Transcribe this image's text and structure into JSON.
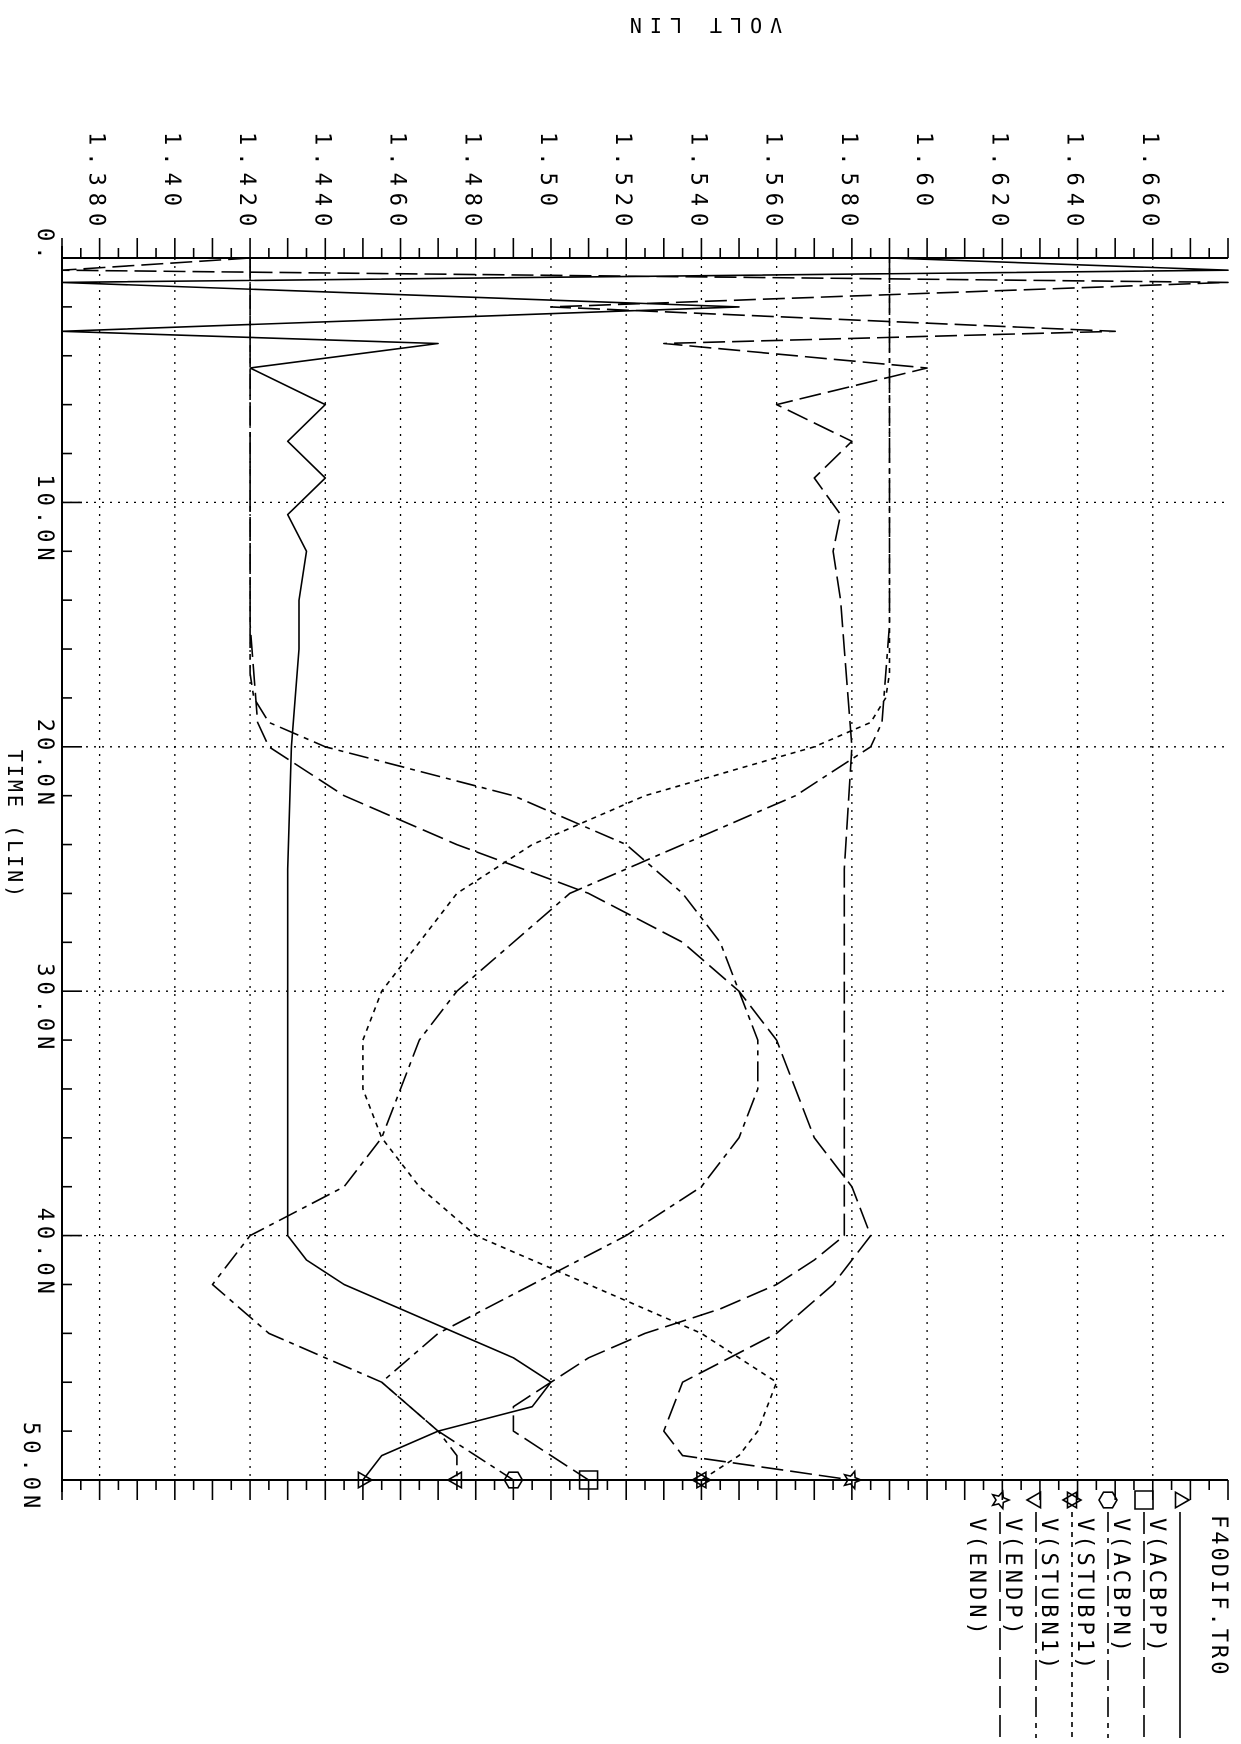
{
  "plot_title": "F40DIF.TR0",
  "y_axis_unit": "VOLT LIN",
  "x_axis_label": "TIME (LIN)",
  "x_tick_origin_label": "0.",
  "chart_data": {
    "type": "line",
    "orientation": "rotated-90-clockwise",
    "title": "F40DIF.TR0",
    "xlabel": "TIME (LIN)",
    "ylabel": "VOLT LIN",
    "x_unit": "ns",
    "xlim": [
      0,
      50
    ],
    "ylim": [
      1.37,
      1.68
    ],
    "x_ticks": [
      0,
      10,
      20,
      30,
      40,
      50
    ],
    "x_tick_labels": [
      "0.",
      "10.0N",
      "20.0N",
      "30.0N",
      "40.0N",
      "50.0N"
    ],
    "y_ticks": [
      1.38,
      1.4,
      1.42,
      1.44,
      1.46,
      1.48,
      1.5,
      1.52,
      1.54,
      1.56,
      1.58,
      1.6,
      1.62,
      1.64,
      1.66
    ],
    "y_tick_labels": [
      "1.380",
      "1.40",
      "1.420",
      "1.440",
      "1.460",
      "1.480",
      "1.50",
      "1.520",
      "1.540",
      "1.560",
      "1.580",
      "1.60",
      "1.620",
      "1.640",
      "1.660"
    ],
    "grid": true,
    "legend_position": "right",
    "series": [
      {
        "name": "V(ACBPP)",
        "marker": "triangle-up",
        "dash": "none",
        "x": [
          0,
          0.5,
          1.0,
          2.0,
          3.0,
          3.5,
          4.5,
          6.0,
          7.5,
          9.0,
          10.5,
          12,
          14,
          16,
          18,
          20,
          25,
          30,
          35,
          40,
          41,
          42,
          43,
          44,
          45,
          46,
          47,
          48,
          49,
          50
        ],
        "y": [
          1.59,
          1.68,
          1.37,
          1.55,
          1.37,
          1.47,
          1.42,
          1.44,
          1.43,
          1.44,
          1.43,
          1.435,
          1.433,
          1.433,
          1.432,
          1.431,
          1.43,
          1.43,
          1.43,
          1.43,
          1.435,
          1.445,
          1.46,
          1.475,
          1.49,
          1.5,
          1.495,
          1.47,
          1.455,
          1.45
        ]
      },
      {
        "name": "V(ACBPN)",
        "marker": "square",
        "dash": "long-dash",
        "x": [
          0,
          0.5,
          1.0,
          2.0,
          3.0,
          3.5,
          4.5,
          6.0,
          7.5,
          9.0,
          10.5,
          12,
          14,
          16,
          18,
          20,
          25,
          30,
          35,
          40,
          41,
          42,
          43,
          44,
          45,
          46,
          47,
          48,
          49,
          50
        ],
        "y": [
          1.42,
          1.37,
          1.68,
          1.5,
          1.65,
          1.53,
          1.6,
          1.56,
          1.58,
          1.57,
          1.577,
          1.575,
          1.577,
          1.578,
          1.579,
          1.58,
          1.578,
          1.578,
          1.578,
          1.578,
          1.57,
          1.56,
          1.545,
          1.525,
          1.51,
          1.5,
          1.49,
          1.49,
          1.5,
          1.51
        ]
      },
      {
        "name": "V(STUBP1)",
        "marker": "hexagon",
        "dash": "long-short",
        "x": [
          0,
          2,
          5,
          10,
          15,
          17,
          18,
          19,
          20,
          22,
          24,
          26,
          28,
          30,
          32,
          34,
          36,
          38,
          40,
          42,
          44,
          46,
          48,
          49,
          50
        ],
        "y": [
          1.42,
          1.42,
          1.42,
          1.42,
          1.42,
          1.42,
          1.421,
          1.425,
          1.44,
          1.49,
          1.52,
          1.535,
          1.545,
          1.55,
          1.555,
          1.555,
          1.55,
          1.54,
          1.52,
          1.495,
          1.47,
          1.455,
          1.47,
          1.48,
          1.49
        ]
      },
      {
        "name": "V(STUBN1)",
        "marker": "star-of-david",
        "dash": "short-dash",
        "x": [
          0,
          2,
          5,
          10,
          15,
          17,
          18,
          19,
          20,
          22,
          24,
          26,
          28,
          30,
          32,
          34,
          36,
          38,
          40,
          42,
          44,
          46,
          48,
          49,
          50
        ],
        "y": [
          1.59,
          1.59,
          1.59,
          1.59,
          1.59,
          1.59,
          1.589,
          1.585,
          1.57,
          1.525,
          1.495,
          1.475,
          1.465,
          1.455,
          1.45,
          1.45,
          1.455,
          1.465,
          1.48,
          1.51,
          1.54,
          1.56,
          1.555,
          1.55,
          1.54
        ]
      },
      {
        "name": "V(ENDP)",
        "marker": "triangle-down",
        "dash": "long-short",
        "x": [
          0,
          5,
          10,
          15,
          19,
          20,
          22,
          24,
          26,
          28,
          30,
          32,
          34,
          36,
          38,
          40,
          42,
          44,
          46,
          48,
          49,
          50
        ],
        "y": [
          1.59,
          1.59,
          1.59,
          1.59,
          1.588,
          1.585,
          1.565,
          1.535,
          1.505,
          1.49,
          1.475,
          1.465,
          1.46,
          1.455,
          1.445,
          1.42,
          1.41,
          1.425,
          1.455,
          1.47,
          1.475,
          1.475
        ]
      },
      {
        "name": "V(ENDN)",
        "marker": "star",
        "dash": "long-dash",
        "x": [
          0,
          5,
          10,
          15,
          19,
          20,
          22,
          24,
          26,
          28,
          30,
          32,
          34,
          36,
          38,
          40,
          42,
          44,
          46,
          48,
          49,
          50
        ],
        "y": [
          1.42,
          1.42,
          1.42,
          1.42,
          1.422,
          1.425,
          1.445,
          1.475,
          1.51,
          1.535,
          1.55,
          1.56,
          1.565,
          1.57,
          1.58,
          1.585,
          1.575,
          1.56,
          1.535,
          1.53,
          1.535,
          1.58
        ]
      }
    ]
  }
}
